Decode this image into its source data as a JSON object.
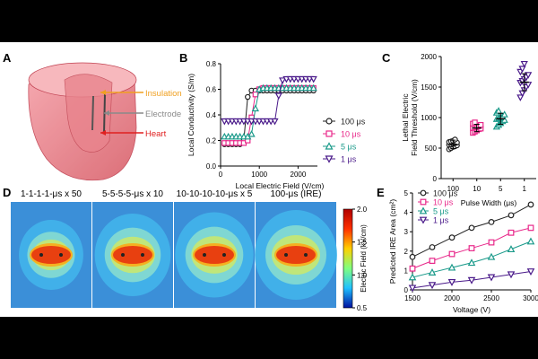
{
  "panel_labels": {
    "a": "A",
    "b": "B",
    "c": "C",
    "d": "D",
    "e": "E"
  },
  "heart": {
    "labels": {
      "insulation": "Insulation",
      "electrode": "Electrode",
      "heart": "Heart"
    },
    "colors": {
      "insulation": "#f0a020",
      "electrode": "#8a8a8a",
      "heart": "#e02020"
    }
  },
  "series_style": [
    {
      "name": "100 μs",
      "color": "#222222",
      "marker": "circle"
    },
    {
      "name": "10 μs",
      "color": "#e8288a",
      "marker": "square"
    },
    {
      "name": "5 μs",
      "color": "#1a9a8a",
      "marker": "triangle"
    },
    {
      "name": "1 μs",
      "color": "#4a1a8a",
      "marker": "triangle-down"
    }
  ],
  "chart_data": [
    {
      "id": "B",
      "type": "line",
      "xlabel": "Local Electric Field (V/cm)",
      "ylabel": "Local Conductivity (S/m)",
      "xlim": [
        0,
        2500
      ],
      "ylim": [
        0,
        0.8
      ],
      "xticks": [
        0,
        1000,
        2000
      ],
      "yticks": [
        0.0,
        0.2,
        0.4,
        0.6,
        0.8
      ],
      "legend": "right",
      "series": [
        {
          "name": "100 μs",
          "x": [
            100,
            200,
            300,
            400,
            500,
            600,
            700,
            800,
            900,
            1000,
            1100,
            1200,
            1300,
            1400,
            1500,
            1600,
            1700,
            1800,
            1900,
            2000,
            2100,
            2200,
            2300,
            2400
          ],
          "y": [
            0.17,
            0.17,
            0.17,
            0.17,
            0.17,
            0.2,
            0.54,
            0.59,
            0.59,
            0.59,
            0.59,
            0.59,
            0.59,
            0.59,
            0.59,
            0.59,
            0.59,
            0.59,
            0.59,
            0.59,
            0.59,
            0.59,
            0.59,
            0.59
          ]
        },
        {
          "name": "10 μs",
          "x": [
            100,
            200,
            300,
            400,
            500,
            600,
            700,
            800,
            900,
            1000,
            1100,
            1200,
            1300,
            1400,
            1500,
            1600,
            1700,
            1800,
            1900,
            2000,
            2100,
            2200,
            2300,
            2400
          ],
          "y": [
            0.18,
            0.18,
            0.18,
            0.18,
            0.18,
            0.18,
            0.2,
            0.38,
            0.56,
            0.6,
            0.61,
            0.61,
            0.61,
            0.61,
            0.61,
            0.61,
            0.61,
            0.61,
            0.61,
            0.61,
            0.61,
            0.61,
            0.61,
            0.61
          ]
        },
        {
          "name": "5 μs",
          "x": [
            100,
            200,
            300,
            400,
            500,
            600,
            700,
            800,
            900,
            1000,
            1100,
            1200,
            1300,
            1400,
            1500,
            1600,
            1700,
            1800,
            1900,
            2000,
            2100,
            2200,
            2300,
            2400
          ],
          "y": [
            0.23,
            0.23,
            0.23,
            0.23,
            0.23,
            0.23,
            0.23,
            0.25,
            0.45,
            0.6,
            0.61,
            0.61,
            0.61,
            0.61,
            0.61,
            0.61,
            0.61,
            0.61,
            0.61,
            0.61,
            0.61,
            0.61,
            0.61,
            0.61
          ]
        },
        {
          "name": "1 μs",
          "x": [
            100,
            200,
            300,
            400,
            500,
            600,
            700,
            800,
            900,
            1000,
            1100,
            1200,
            1300,
            1400,
            1500,
            1600,
            1700,
            1800,
            1900,
            2000,
            2100,
            2200,
            2300,
            2400
          ],
          "y": [
            0.35,
            0.35,
            0.35,
            0.35,
            0.35,
            0.35,
            0.35,
            0.35,
            0.35,
            0.35,
            0.35,
            0.35,
            0.35,
            0.35,
            0.55,
            0.67,
            0.68,
            0.68,
            0.68,
            0.68,
            0.68,
            0.68,
            0.68,
            0.68
          ]
        }
      ]
    },
    {
      "id": "C",
      "type": "scatter",
      "xlabel": "Pulse Width (μs)",
      "ylabel": "Lethal Electric Field Threshold (V/cm)",
      "ylabel_lines": [
        "Lethal Electric",
        "Field Threshold (V/cm)"
      ],
      "categories": [
        "100",
        "10",
        "5",
        "1"
      ],
      "ylim": [
        0,
        2000
      ],
      "yticks": [
        0,
        500,
        1000,
        1500,
        2000
      ],
      "groups": [
        {
          "name": "100 μs",
          "mean": 560,
          "sd": 70,
          "points": [
            480,
            500,
            520,
            530,
            545,
            555,
            560,
            570,
            580,
            590,
            600,
            610,
            620,
            640
          ]
        },
        {
          "name": "10 μs",
          "mean": 830,
          "sd": 60,
          "points": [
            750,
            770,
            790,
            810,
            820,
            830,
            840,
            850,
            860,
            880,
            900,
            920
          ]
        },
        {
          "name": "5 μs",
          "mean": 980,
          "sd": 90,
          "points": [
            850,
            880,
            910,
            940,
            960,
            975,
            985,
            1000,
            1020,
            1050,
            1080,
            1110
          ]
        },
        {
          "name": "1 μs",
          "mean": 1580,
          "sd": 140,
          "points": [
            1330,
            1400,
            1450,
            1500,
            1540,
            1570,
            1600,
            1630,
            1660,
            1700,
            1750,
            1800,
            1880
          ]
        }
      ]
    },
    {
      "id": "D",
      "type": "heatmap",
      "titles": [
        "1-1-1-1-μs x 50",
        "5-5-5-5-μs x 10",
        "10-10-10-10-μs x 5",
        "100-μs (IRE)"
      ],
      "colorbar": {
        "label": "Electric Field (kV/cm)",
        "min": 0.5,
        "max": 2.0,
        "ticks": [
          "2.0",
          "1.5",
          "1.0",
          "0.5"
        ]
      }
    },
    {
      "id": "E",
      "type": "line",
      "xlabel": "Voltage (V)",
      "ylabel": "Predicted IRE Area (cm²)",
      "xlim": [
        1500,
        3000
      ],
      "ylim": [
        0,
        5
      ],
      "xticks": [
        1500,
        2000,
        2500,
        3000
      ],
      "yticks": [
        0,
        1,
        2,
        3,
        4,
        5
      ],
      "legend": "top-left",
      "x": [
        1500,
        1750,
        2000,
        2250,
        2500,
        2750,
        3000
      ],
      "series": [
        {
          "name": "100 μs",
          "values": [
            1.7,
            2.2,
            2.7,
            3.2,
            3.5,
            3.85,
            4.4
          ]
        },
        {
          "name": "10 μs",
          "values": [
            1.1,
            1.5,
            1.85,
            2.15,
            2.45,
            2.95,
            3.2
          ]
        },
        {
          "name": "5 μs",
          "values": [
            0.65,
            0.9,
            1.15,
            1.4,
            1.7,
            2.1,
            2.5
          ]
        },
        {
          "name": "1 μs",
          "values": [
            0.1,
            0.25,
            0.4,
            0.5,
            0.65,
            0.8,
            0.95
          ]
        }
      ]
    }
  ]
}
